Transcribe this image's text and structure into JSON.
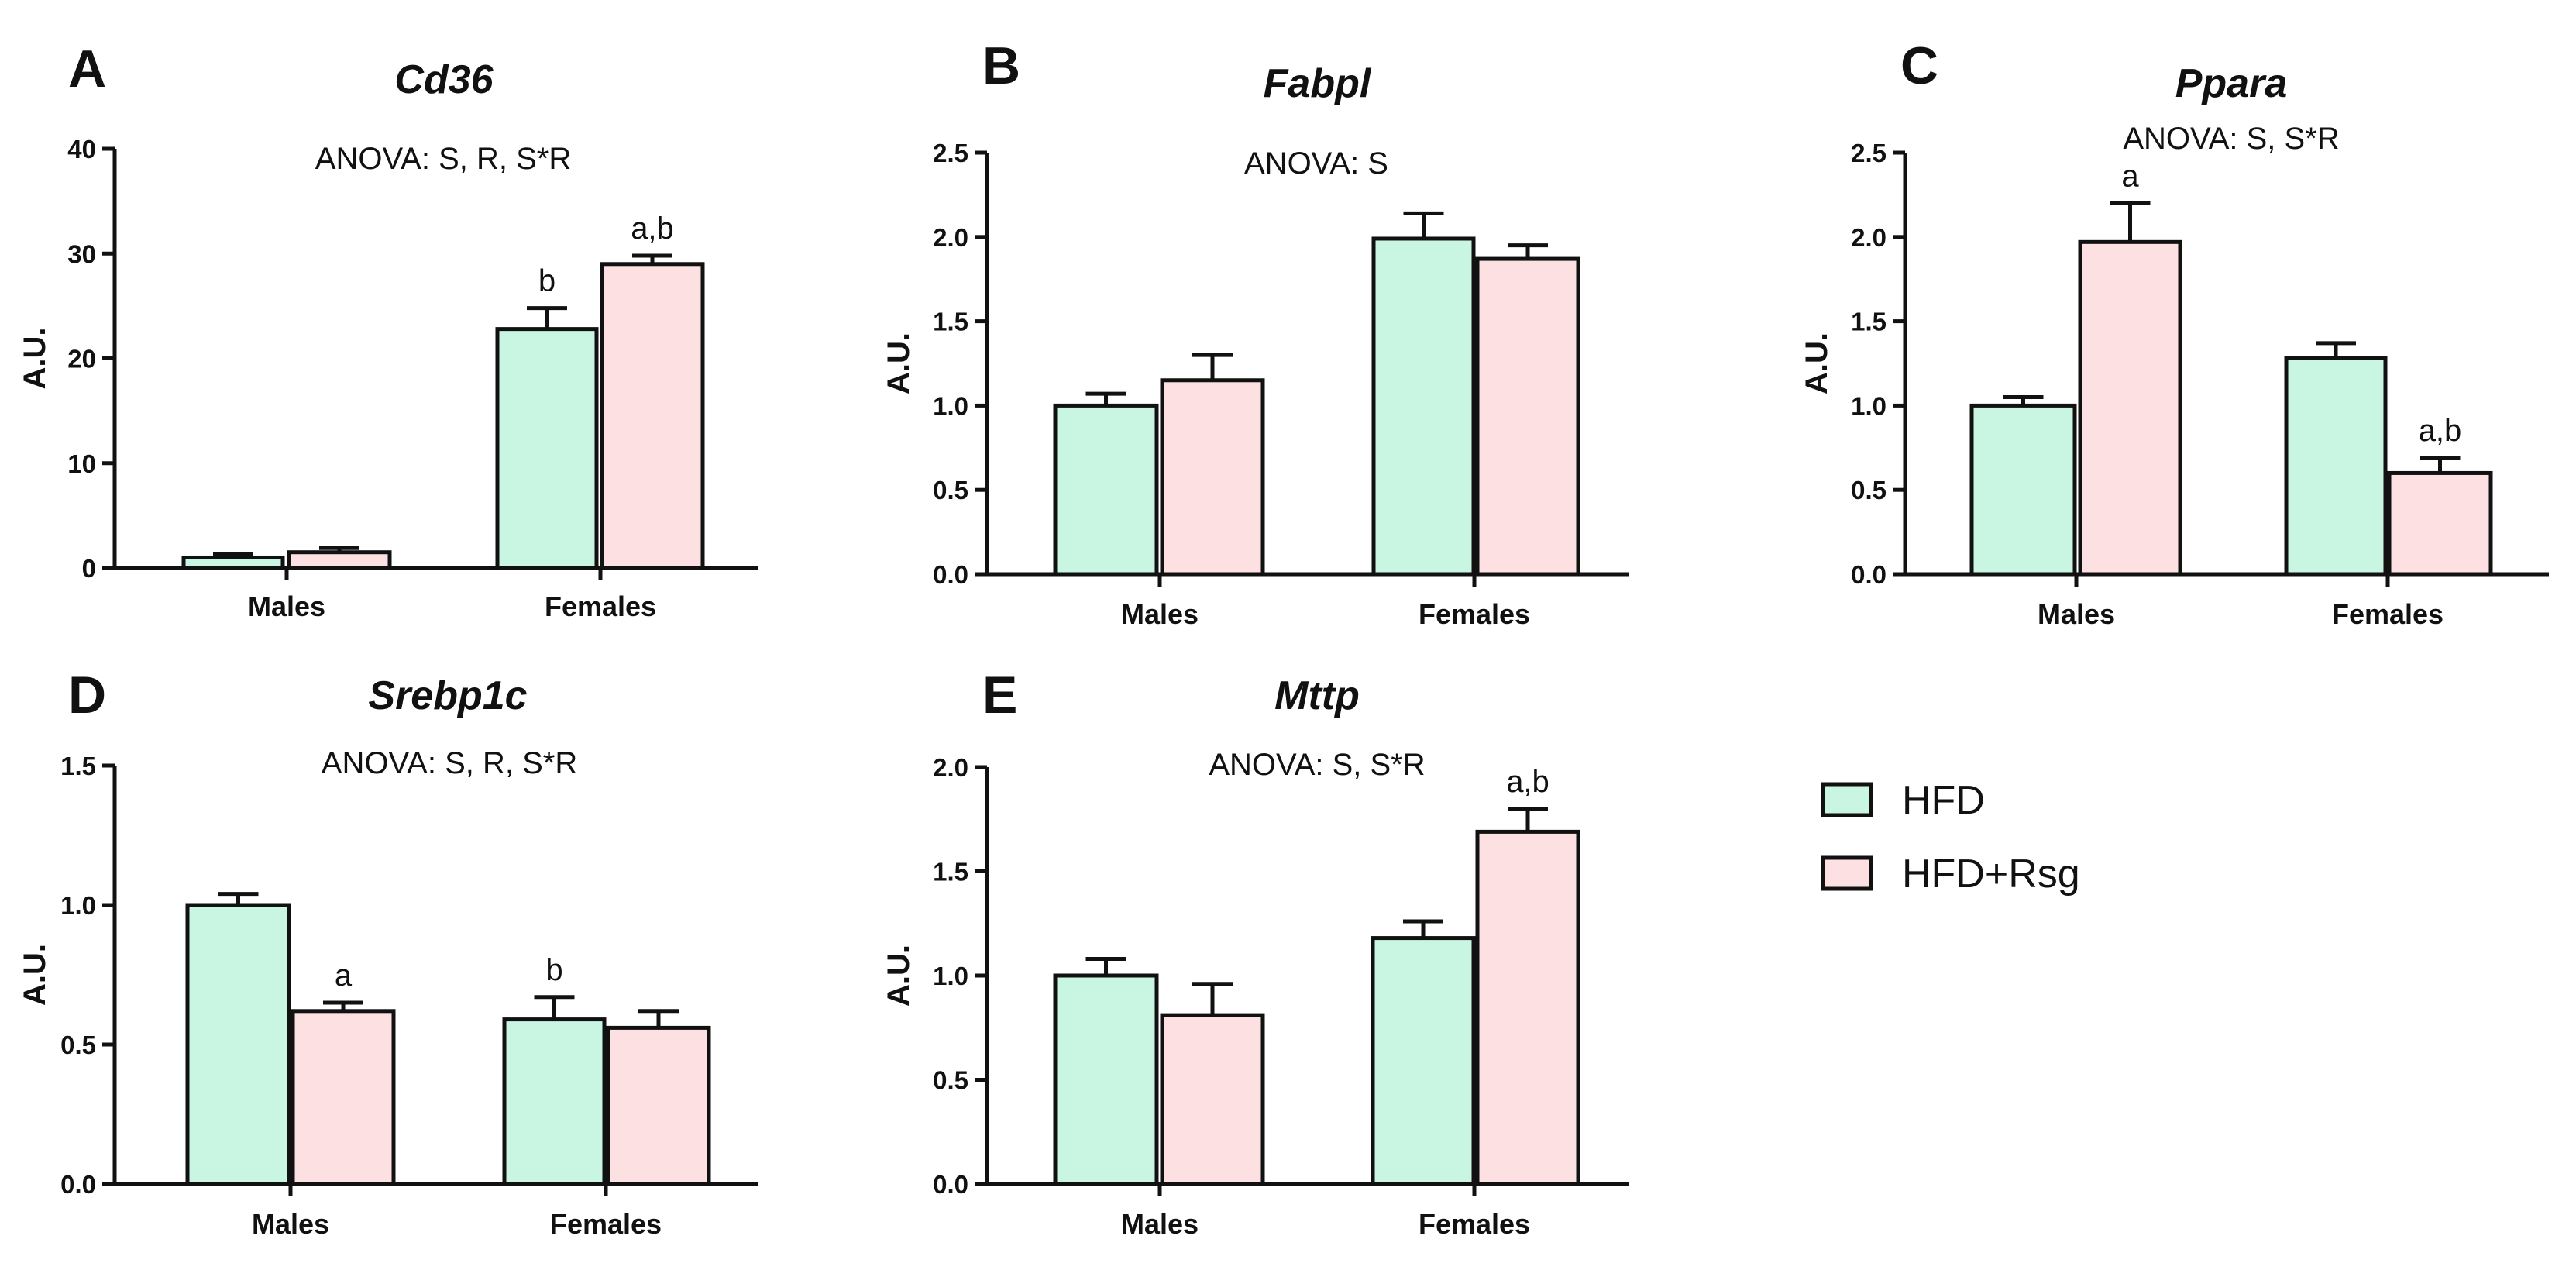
{
  "legend": [
    {
      "label": "HFD",
      "color": "#c9f5e3"
    },
    {
      "label": "HFD+Rsg",
      "color": "#fde0e1"
    }
  ],
  "chart_data": [
    {
      "type": "bar",
      "panel": "A",
      "title": "Cd36",
      "annotation": "ANOVA: S, R, S*R",
      "ylabel": "A.U.",
      "ylim": [
        0,
        40
      ],
      "yticks": [
        "0",
        "10",
        "20",
        "30",
        "40"
      ],
      "categories": [
        "Males",
        "Females"
      ],
      "series": [
        {
          "name": "HFD",
          "values": [
            1.0,
            22.8
          ],
          "errors": [
            0.3,
            2.0
          ],
          "labels": [
            "",
            "b"
          ]
        },
        {
          "name": "HFD+Rsg",
          "values": [
            1.5,
            29.0
          ],
          "errors": [
            0.4,
            0.8
          ],
          "labels": [
            "",
            "a,b"
          ]
        }
      ]
    },
    {
      "type": "bar",
      "panel": "B",
      "title": "Fabpl",
      "annotation": "ANOVA: S",
      "ylabel": "A.U.",
      "ylim": [
        0,
        2.5
      ],
      "yticks": [
        "0.0",
        "0.5",
        "1.0",
        "1.5",
        "2.0",
        "2.5"
      ],
      "categories": [
        "Males",
        "Females"
      ],
      "series": [
        {
          "name": "HFD",
          "values": [
            1.0,
            1.99
          ],
          "errors": [
            0.07,
            0.15
          ],
          "labels": [
            "",
            ""
          ]
        },
        {
          "name": "HFD+Rsg",
          "values": [
            1.15,
            1.87
          ],
          "errors": [
            0.15,
            0.08
          ],
          "labels": [
            "",
            ""
          ]
        }
      ]
    },
    {
      "type": "bar",
      "panel": "C",
      "title": "Ppara",
      "annotation": "ANOVA: S, S*R",
      "ylabel": "A.U.",
      "ylim": [
        0,
        2.5
      ],
      "yticks": [
        "0.0",
        "0.5",
        "1.0",
        "1.5",
        "2.0",
        "2.5"
      ],
      "categories": [
        "Males",
        "Females"
      ],
      "series": [
        {
          "name": "HFD",
          "values": [
            1.0,
            1.28
          ],
          "errors": [
            0.05,
            0.09
          ],
          "labels": [
            "",
            ""
          ]
        },
        {
          "name": "HFD+Rsg",
          "values": [
            1.97,
            0.6
          ],
          "errors": [
            0.23,
            0.09
          ],
          "labels": [
            "a",
            "a,b"
          ]
        }
      ]
    },
    {
      "type": "bar",
      "panel": "D",
      "title": "Srebp1c",
      "annotation": "ANOVA: S, R, S*R",
      "ylabel": "A.U.",
      "ylim": [
        0,
        1.5
      ],
      "yticks": [
        "0.0",
        "0.5",
        "1.0",
        "1.5"
      ],
      "categories": [
        "Males",
        "Females"
      ],
      "series": [
        {
          "name": "HFD",
          "values": [
            1.0,
            0.59
          ],
          "errors": [
            0.04,
            0.08
          ],
          "labels": [
            "",
            "b"
          ]
        },
        {
          "name": "HFD+Rsg",
          "values": [
            0.62,
            0.56
          ],
          "errors": [
            0.03,
            0.06
          ],
          "labels": [
            "a",
            ""
          ]
        }
      ]
    },
    {
      "type": "bar",
      "panel": "E",
      "title": "Mttp",
      "annotation": "ANOVA: S, S*R",
      "ylabel": "A.U.",
      "ylim": [
        0,
        2.0
      ],
      "yticks": [
        "0.0",
        "0.5",
        "1.0",
        "1.5",
        "2.0"
      ],
      "categories": [
        "Males",
        "Females"
      ],
      "series": [
        {
          "name": "HFD",
          "values": [
            1.0,
            1.18
          ],
          "errors": [
            0.08,
            0.08
          ],
          "labels": [
            "",
            ""
          ]
        },
        {
          "name": "HFD+Rsg",
          "values": [
            0.81,
            1.69
          ],
          "errors": [
            0.15,
            0.11
          ],
          "labels": [
            "",
            "a,b"
          ]
        }
      ]
    }
  ]
}
